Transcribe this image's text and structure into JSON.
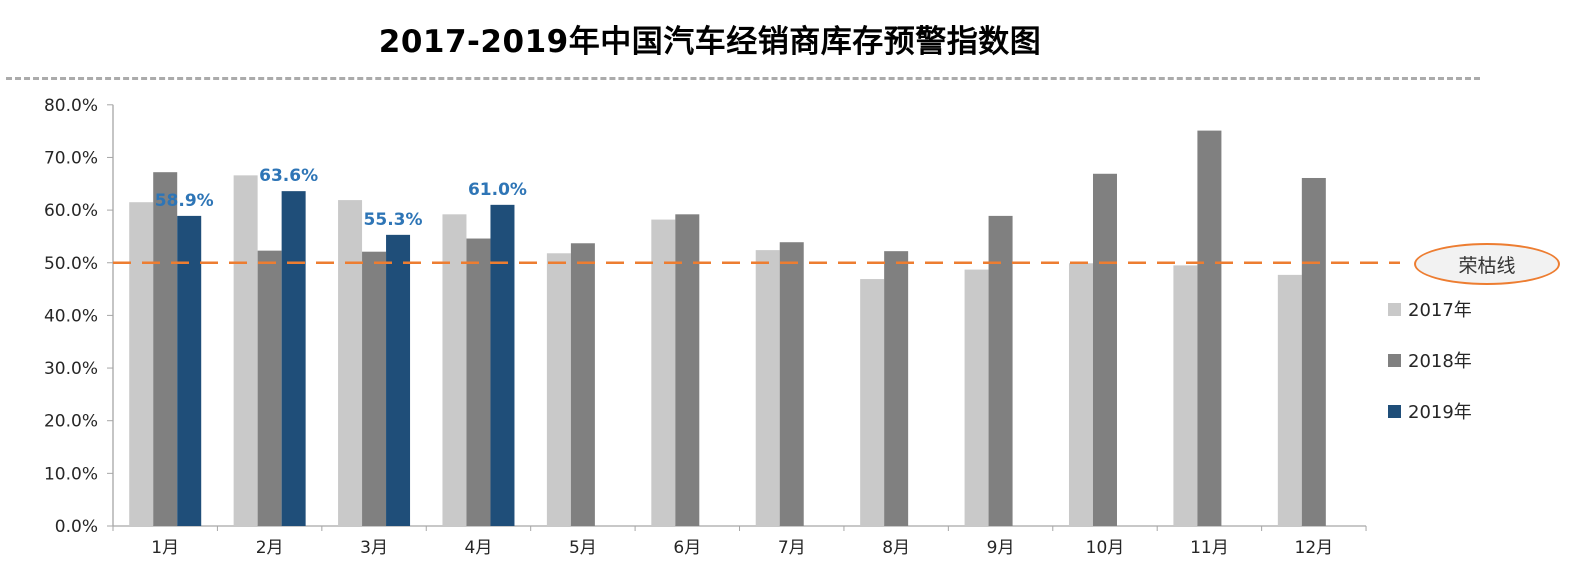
{
  "chart_data": {
    "type": "bar",
    "title": "2017-2019年中国汽车经销商库存预警指数图",
    "categories": [
      "1月",
      "2月",
      "3月",
      "4月",
      "5月",
      "6月",
      "7月",
      "8月",
      "9月",
      "10月",
      "11月",
      "12月"
    ],
    "series": [
      {
        "name": "2017年",
        "color": "#C9C9C9",
        "values": [
          61.5,
          66.6,
          61.9,
          59.2,
          51.8,
          58.2,
          52.4,
          46.9,
          48.7,
          49.9,
          49.5,
          47.7
        ]
      },
      {
        "name": "2018年",
        "color": "#808080",
        "values": [
          67.2,
          52.3,
          52.1,
          54.6,
          53.7,
          59.2,
          53.9,
          52.2,
          58.9,
          66.9,
          75.1,
          66.1
        ]
      },
      {
        "name": "2019年",
        "color": "#1F4E79",
        "values": [
          58.9,
          63.6,
          55.3,
          61.0,
          null,
          null,
          null,
          null,
          null,
          null,
          null,
          null
        ],
        "data_labels": [
          "58.9%",
          "63.6%",
          "55.3%",
          "61.0%"
        ]
      }
    ],
    "y_axis": {
      "min": 0,
      "max": 80,
      "step": 10,
      "tick_labels": [
        "0.0%",
        "10.0%",
        "20.0%",
        "30.0%",
        "40.0%",
        "50.0%",
        "60.0%",
        "70.0%",
        "80.0%"
      ]
    },
    "reference_line": {
      "value": 50,
      "label": "荣枯线",
      "color": "#ED7D31"
    },
    "data_label_color": "#2E75B6",
    "legend_position": "right",
    "grid": false
  },
  "style_tokens": {
    "axis_line_color": "#A6A6A6",
    "axis_text_color": "#262626",
    "separator_color": "#ABABAB"
  }
}
